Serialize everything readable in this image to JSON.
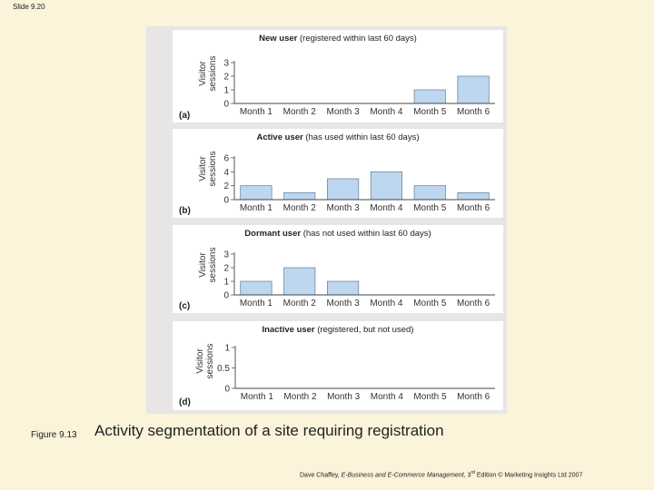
{
  "slide_label": "Slide 9.20",
  "caption": {
    "figure_label": "Figure 9.13",
    "text": "Activity segmentation of a site requiring registration"
  },
  "footer": {
    "author": "Dave Chaffey,",
    "book": "E-Business and E-Commerce Management,",
    "edition_num": "3",
    "edition_sup": "rd",
    "edition_rest": "Edition © Marketing Insights Ltd 2007"
  },
  "chart_data": [
    {
      "type": "bar",
      "panel_letter": "(a)",
      "title_bold": "New user",
      "title_rest": " (registered within last 60 days)",
      "ylabel_line1": "Visitor",
      "ylabel_line2": "sessions",
      "categories": [
        "Month 1",
        "Month 2",
        "Month 3",
        "Month 4",
        "Month 5",
        "Month 6"
      ],
      "values": [
        0,
        0,
        0,
        0,
        1,
        2
      ],
      "ylim": [
        0,
        3
      ],
      "yticks": [
        "0",
        "1",
        "2",
        "3"
      ],
      "bar_color": "#bcd7ef"
    },
    {
      "type": "bar",
      "panel_letter": "(b)",
      "title_bold": "Active user",
      "title_rest": " (has used within last 60 days)",
      "ylabel_line1": "Visitor",
      "ylabel_line2": "sessions",
      "categories": [
        "Month 1",
        "Month 2",
        "Month 3",
        "Month 4",
        "Month 5",
        "Month 6"
      ],
      "values": [
        2,
        1,
        3,
        4,
        2,
        1
      ],
      "ylim": [
        0,
        6
      ],
      "yticks": [
        "0",
        "2",
        "4",
        "6"
      ],
      "bar_color": "#bcd7ef"
    },
    {
      "type": "bar",
      "panel_letter": "(c)",
      "title_bold": "Dormant user",
      "title_rest": " (has not used within last 60 days)",
      "ylabel_line1": "Visitor",
      "ylabel_line2": "sessions",
      "categories": [
        "Month 1",
        "Month 2",
        "Month 3",
        "Month 4",
        "Month 5",
        "Month 6"
      ],
      "values": [
        1,
        2,
        1,
        0,
        0,
        0
      ],
      "ylim": [
        0,
        3
      ],
      "yticks": [
        "0",
        "1",
        "2",
        "3"
      ],
      "bar_color": "#bcd7ef"
    },
    {
      "type": "bar",
      "panel_letter": "(d)",
      "title_bold": "Inactive user",
      "title_rest": " (registered, but not used)",
      "ylabel_line1": "Visitor",
      "ylabel_line2": "sessions",
      "categories": [
        "Month 1",
        "Month 2",
        "Month 3",
        "Month 4",
        "Month 5",
        "Month 6"
      ],
      "values": [
        0,
        0,
        0,
        0,
        0,
        0
      ],
      "ylim": [
        0,
        1
      ],
      "yticks": [
        "0",
        "0.5",
        "1"
      ],
      "bar_color": "#bcd7ef"
    }
  ]
}
